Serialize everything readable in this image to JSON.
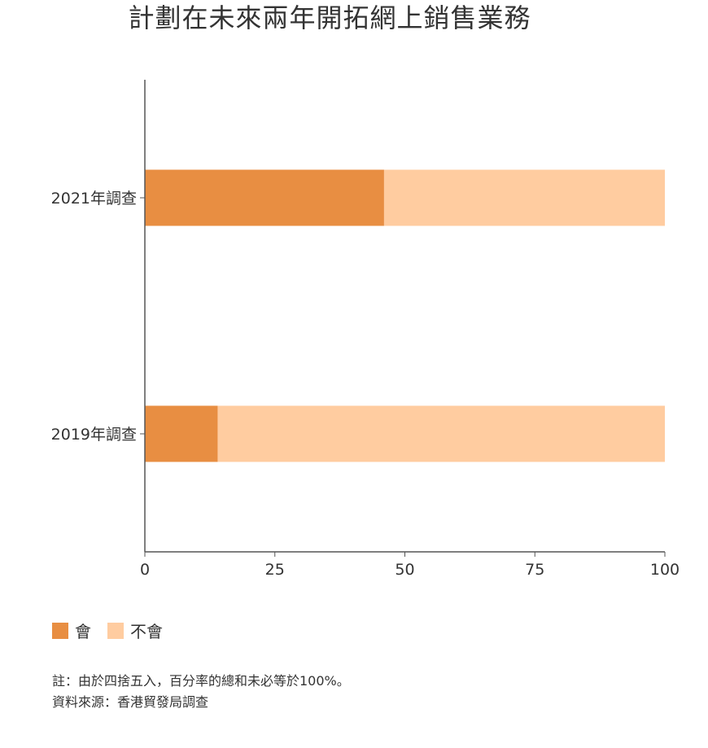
{
  "chart_data": {
    "type": "bar",
    "orientation": "horizontal",
    "stacked": true,
    "title": "計劃在未來兩年開拓網上銷售業務",
    "categories": [
      "2021年調查",
      "2019年調查"
    ],
    "series": [
      {
        "name": "會",
        "values": [
          46,
          14
        ],
        "color": "#E88E42"
      },
      {
        "name": "不會",
        "values": [
          54,
          86
        ],
        "color": "#FFCCA0"
      }
    ],
    "xlim": [
      0,
      100
    ],
    "xticks": [
      0,
      25,
      50,
      75,
      100
    ],
    "grid": false,
    "legend_position": "bottom-left"
  },
  "notes": [
    "註：由於四捨五入，百分率的總和未必等於100%。",
    "資料來源：香港貿發局調查"
  ]
}
